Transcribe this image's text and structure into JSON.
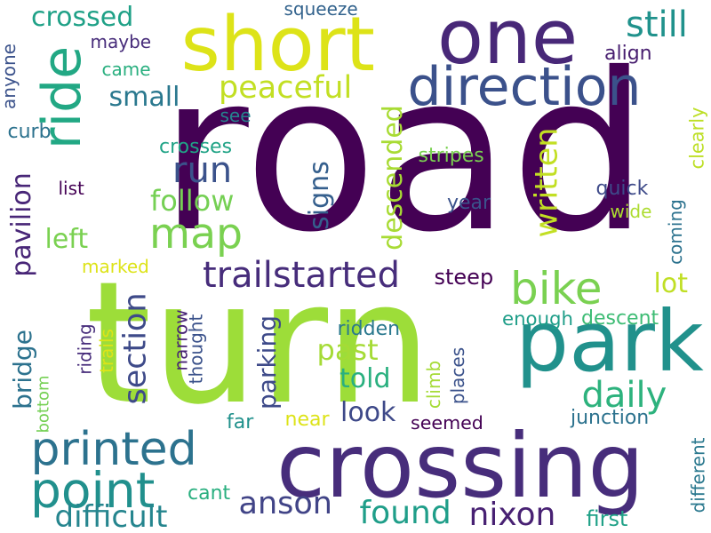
{
  "words": [
    {
      "id": "road",
      "text": "road",
      "color": "#440154"
    },
    {
      "id": "turn",
      "text": "turn",
      "color": "#9ddd39"
    },
    {
      "id": "crossing",
      "text": "crossing",
      "color": "#472d7b"
    },
    {
      "id": "park",
      "text": "park",
      "color": "#21918c"
    },
    {
      "id": "one",
      "text": "one",
      "color": "#482878"
    },
    {
      "id": "short",
      "text": "short",
      "color": "#dde318"
    },
    {
      "id": "ride",
      "text": "ride",
      "color": "#22a884"
    },
    {
      "id": "direction",
      "text": "direction",
      "color": "#3b518b"
    },
    {
      "id": "printed",
      "text": "printed",
      "color": "#2c728e"
    },
    {
      "id": "point",
      "text": "point",
      "color": "#21908d"
    },
    {
      "id": "map",
      "text": "map",
      "color": "#7ad151"
    },
    {
      "id": "bike",
      "text": "bike",
      "color": "#7ad151"
    },
    {
      "id": "trailstarted",
      "text": "trailstarted",
      "color": "#472d7b"
    },
    {
      "id": "peaceful",
      "text": "peaceful",
      "color": "#c2df23"
    },
    {
      "id": "still",
      "text": "still",
      "color": "#20928c"
    },
    {
      "id": "run",
      "text": "run",
      "color": "#3b528b"
    },
    {
      "id": "follow",
      "text": "follow",
      "color": "#75d054"
    },
    {
      "id": "daily",
      "text": "daily",
      "color": "#2db27d"
    },
    {
      "id": "section",
      "text": "section",
      "color": "#3e4a89"
    },
    {
      "id": "anson",
      "text": "anson",
      "color": "#414487"
    },
    {
      "id": "found",
      "text": "found",
      "color": "#1f9e89"
    },
    {
      "id": "nixon",
      "text": "nixon",
      "color": "#482173"
    },
    {
      "id": "difficult",
      "text": "difficult",
      "color": "#25858e"
    },
    {
      "id": "crossed",
      "text": "crossed",
      "color": "#1fa187"
    },
    {
      "id": "written",
      "text": "written",
      "color": "#c2df23"
    },
    {
      "id": "signs",
      "text": "signs",
      "color": "#355f8d"
    },
    {
      "id": "descended",
      "text": "descended",
      "color": "#a8db34"
    },
    {
      "id": "pavilion",
      "text": "pavilion",
      "color": "#482677"
    },
    {
      "id": "left",
      "text": "left",
      "color": "#7ad151"
    },
    {
      "id": "lot",
      "text": "lot",
      "color": "#c0df25"
    },
    {
      "id": "past",
      "text": "past",
      "color": "#a5db36"
    },
    {
      "id": "told",
      "text": "told",
      "color": "#2ab07f"
    },
    {
      "id": "look",
      "text": "look",
      "color": "#3e4989"
    },
    {
      "id": "parking",
      "text": "parking",
      "color": "#3e4a89"
    },
    {
      "id": "bridge",
      "text": "bridge",
      "color": "#2c728e"
    },
    {
      "id": "small",
      "text": "small",
      "color": "#2a788e"
    },
    {
      "id": "squeeze",
      "text": "squeeze",
      "color": "#33638d"
    },
    {
      "id": "maybe",
      "text": "maybe",
      "color": "#472c7a"
    },
    {
      "id": "came",
      "text": "came",
      "color": "#29af7f"
    },
    {
      "id": "align",
      "text": "align",
      "color": "#481f70"
    },
    {
      "id": "anyone",
      "text": "anyone",
      "color": "#3b528b"
    },
    {
      "id": "see",
      "text": "see",
      "color": "#25848e"
    },
    {
      "id": "curb",
      "text": "curb",
      "color": "#2c728e"
    },
    {
      "id": "crosses",
      "text": "crosses",
      "color": "#20a386"
    },
    {
      "id": "clearly",
      "text": "clearly",
      "color": "#bddf26"
    },
    {
      "id": "stripes",
      "text": "stripes",
      "color": "#7ad151"
    },
    {
      "id": "list",
      "text": "list",
      "color": "#440154"
    },
    {
      "id": "quick",
      "text": "quick",
      "color": "#3e4a89"
    },
    {
      "id": "year",
      "text": "year",
      "color": "#3b528b"
    },
    {
      "id": "wide",
      "text": "wide",
      "color": "#addc30"
    },
    {
      "id": "coming",
      "text": "coming",
      "color": "#2c728e"
    },
    {
      "id": "marked",
      "text": "marked",
      "color": "#dde318"
    },
    {
      "id": "steep",
      "text": "steep",
      "color": "#440154"
    },
    {
      "id": "enough",
      "text": "enough",
      "color": "#1f9e89"
    },
    {
      "id": "descent",
      "text": "descent",
      "color": "#3dbc74"
    },
    {
      "id": "riding",
      "text": "riding",
      "color": "#472d7b"
    },
    {
      "id": "trails",
      "text": "trails",
      "color": "#dde318"
    },
    {
      "id": "narrow",
      "text": "narrow",
      "color": "#482475"
    },
    {
      "id": "thought",
      "text": "thought",
      "color": "#3b528b"
    },
    {
      "id": "ridden",
      "text": "ridden",
      "color": "#2a788e"
    },
    {
      "id": "climb",
      "text": "climb",
      "color": "#a5db36"
    },
    {
      "id": "places",
      "text": "places",
      "color": "#3b528b"
    },
    {
      "id": "bottom",
      "text": "bottom",
      "color": "#75d054"
    },
    {
      "id": "seemed",
      "text": "seemed",
      "color": "#440154"
    },
    {
      "id": "junction",
      "text": "junction",
      "color": "#2c728e"
    },
    {
      "id": "far",
      "text": "far",
      "color": "#21918c"
    },
    {
      "id": "near",
      "text": "near",
      "color": "#dde318"
    },
    {
      "id": "different",
      "text": "different",
      "color": "#2a788e"
    },
    {
      "id": "cant",
      "text": "cant",
      "color": "#29af7f"
    },
    {
      "id": "first",
      "text": "first",
      "color": "#1fa187"
    }
  ]
}
